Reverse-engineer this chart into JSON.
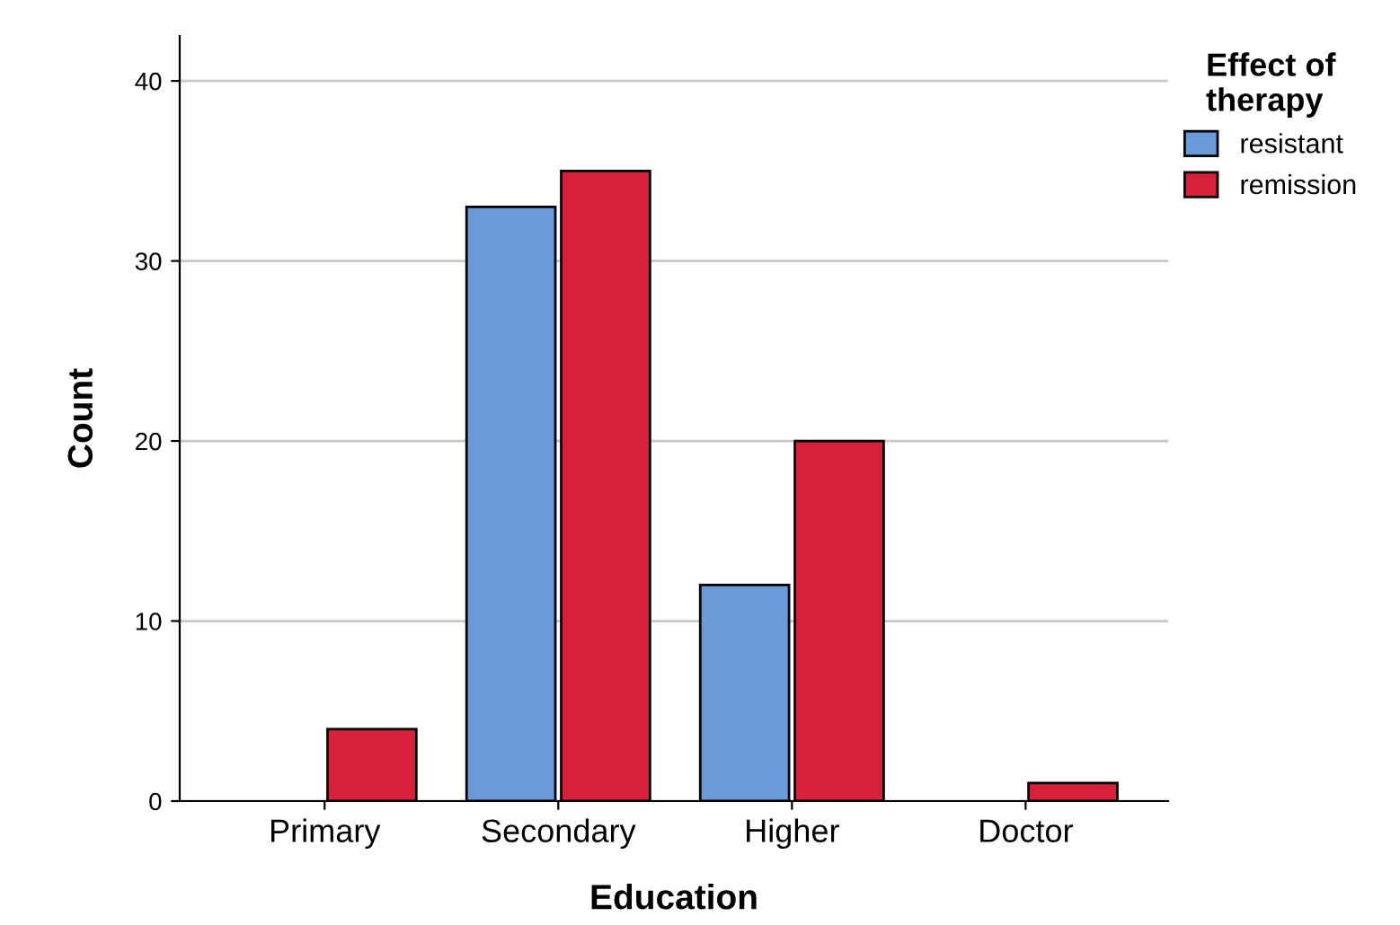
{
  "chart_data": {
    "type": "bar",
    "xlabel": "Education",
    "ylabel": "Count",
    "legend_title": "Effect of\ntherapy",
    "categories": [
      "Primary",
      "Secondary",
      "Higher",
      "Doctor"
    ],
    "series": [
      {
        "name": "resistant",
        "color": "#6a9bd8",
        "values": [
          null,
          33,
          12,
          null
        ]
      },
      {
        "name": "remission",
        "color": "#d7213a",
        "values": [
          4,
          35,
          20,
          1
        ]
      }
    ],
    "ylim": [
      0,
      42.5
    ],
    "yticks": [
      0,
      10,
      20,
      30,
      40
    ],
    "grid": "y",
    "legend": "top right"
  }
}
